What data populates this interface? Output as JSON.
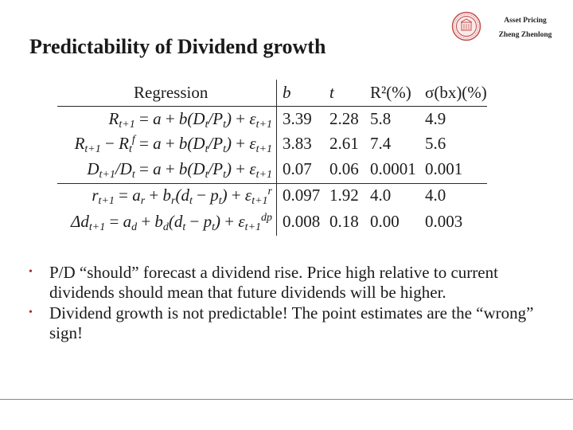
{
  "header": {
    "title": "Predictability of Dividend growth",
    "course": "Asset Pricing",
    "author": "Zheng Zhenlong",
    "logo_icon": "university-seal"
  },
  "table": {
    "headers": {
      "regression": "Regression",
      "b": "b",
      "t": "t",
      "r2": "R²(%)",
      "sigma": "σ(bx)(%)"
    },
    "rows": [
      {
        "b": "3.39",
        "t": "2.28",
        "r2": "5.8",
        "sigma": "4.9"
      },
      {
        "b": "3.83",
        "t": "2.61",
        "r2": "7.4",
        "sigma": "5.6"
      },
      {
        "b": "0.07",
        "t": "0.06",
        "r2": "0.0001",
        "sigma": "0.001"
      },
      {
        "b": "0.097",
        "t": "1.92",
        "r2": "4.0",
        "sigma": "4.0"
      },
      {
        "b": "0.008",
        "t": "0.18",
        "r2": "0.00",
        "sigma": "0.003"
      }
    ]
  },
  "bullets": [
    "P/D “should” forecast a dividend rise. Price high relative to current dividends should mean that future dividends will be higher.",
    "Dividend growth is not predictable! The point estimates are the “wrong” sign!"
  ],
  "colors": {
    "bullet": "#a52a2a",
    "logo": "#c0504d",
    "footer_rule": "#8a8a66"
  }
}
